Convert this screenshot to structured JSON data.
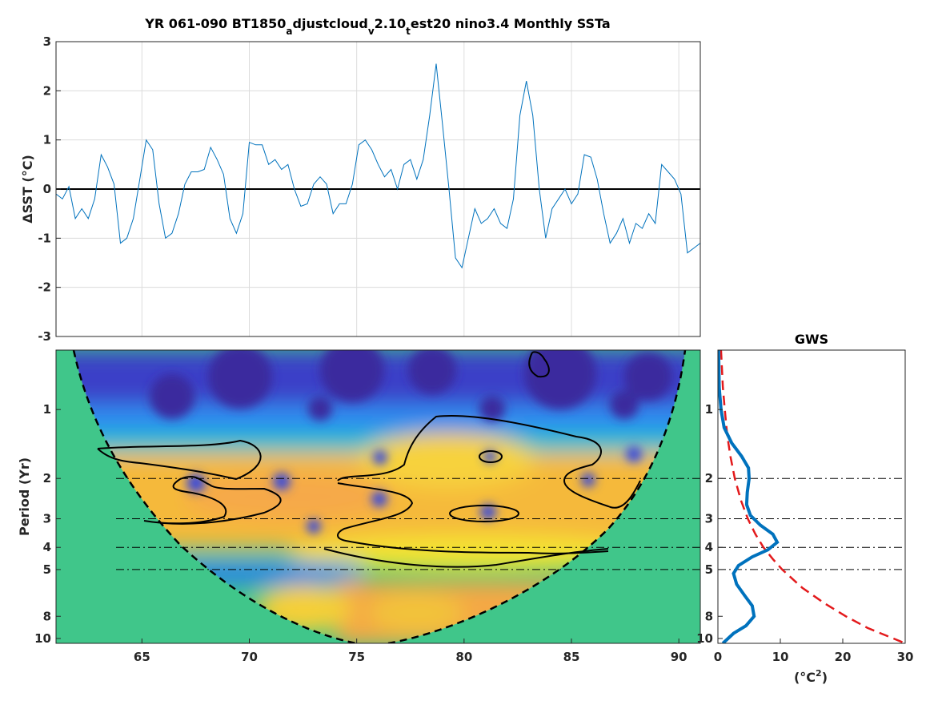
{
  "title": "YR 061-090 BT1850_adjustcloud_v2.10_test20 nino3.4 Monthly SSTa",
  "title_parts": {
    "seg1": "YR 061-090 BT1850",
    "sub1": "a",
    "seg2": "djustcloud",
    "sub2": "v",
    "seg3": "2.10",
    "sub3": "t",
    "seg4": "est20 nino3.4 Monthly SSTa"
  },
  "chart_data": [
    {
      "id": "timeseries",
      "type": "line",
      "ylabel_delta": "Δ",
      "ylabel_text": "SST (°C)",
      "xlim": [
        61,
        91
      ],
      "ylim": [
        -3,
        3
      ],
      "yticks": [
        3,
        2,
        1,
        0,
        -1,
        -2,
        -3
      ],
      "grid": true,
      "zero_line": true,
      "series": [
        {
          "x": [
            61.0,
            61.3,
            61.6,
            61.9,
            62.2,
            62.5,
            62.8,
            63.1,
            63.4,
            63.7,
            64.0,
            64.3,
            64.6,
            64.9,
            65.2,
            65.5,
            65.8,
            66.1,
            66.4,
            66.7,
            67.0,
            67.3,
            67.6,
            67.9,
            68.2,
            68.5,
            68.8,
            69.1,
            69.4,
            69.7,
            70.0,
            70.3,
            70.6,
            70.9,
            71.2,
            71.5,
            71.8,
            72.1,
            72.4,
            72.7,
            73.0,
            73.3,
            73.6,
            73.9,
            74.2,
            74.5,
            74.8,
            75.1,
            75.4,
            75.7,
            76.0,
            76.3,
            76.6,
            76.9,
            77.2,
            77.5,
            77.8,
            78.1,
            78.4,
            78.7,
            79.0,
            79.3,
            79.6,
            79.9,
            80.2,
            80.5,
            80.8,
            81.1,
            81.4,
            81.7,
            82.0,
            82.3,
            82.6,
            82.9,
            83.2,
            83.5,
            83.8,
            84.1,
            84.4,
            84.7,
            85.0,
            85.3,
            85.6,
            85.9,
            86.2,
            86.5,
            86.8,
            87.1,
            87.4,
            87.7,
            88.0,
            88.3,
            88.6,
            88.9,
            89.2,
            89.5,
            89.8,
            90.1,
            90.4,
            90.7,
            91.0
          ],
          "values": [
            -0.1,
            -0.2,
            0.05,
            -0.6,
            -0.4,
            -0.6,
            -0.2,
            0.7,
            0.45,
            0.1,
            -1.1,
            -1.0,
            -0.6,
            0.2,
            1.0,
            0.8,
            -0.3,
            -1.0,
            -0.9,
            -0.5,
            0.1,
            0.35,
            0.35,
            0.4,
            0.85,
            0.6,
            0.3,
            -0.6,
            -0.9,
            -0.5,
            0.95,
            0.9,
            0.9,
            0.5,
            0.6,
            0.4,
            0.5,
            0.0,
            -0.35,
            -0.3,
            0.1,
            0.25,
            0.1,
            -0.5,
            -0.3,
            -0.3,
            0.1,
            0.9,
            1.0,
            0.8,
            0.5,
            0.25,
            0.4,
            0.0,
            0.5,
            0.6,
            0.2,
            0.6,
            1.5,
            2.55,
            1.3,
            0.0,
            -1.4,
            -1.6,
            -1.0,
            -0.4,
            -0.7,
            -0.6,
            -0.4,
            -0.7,
            -0.8,
            -0.2,
            1.5,
            2.2,
            1.5,
            0.0,
            -1.0,
            -0.4,
            -0.2,
            0.0,
            -0.3,
            -0.1,
            0.7,
            0.65,
            0.2,
            -0.5,
            -1.1,
            -0.9,
            -0.6,
            -1.1,
            -0.7,
            -0.8,
            -0.5,
            -0.7,
            0.5,
            0.35,
            0.2,
            -0.1,
            -1.3,
            -1.2,
            -1.1
          ],
          "color": "#0072BD"
        }
      ]
    },
    {
      "id": "wavelet",
      "type": "heatmap",
      "ylabel": "Period (Yr)",
      "xlim": [
        61,
        91
      ],
      "xticks": [
        65,
        70,
        75,
        80,
        85,
        90
      ],
      "ylim": [
        0.55,
        10.5
      ],
      "yscale": "log",
      "yticks": [
        1,
        2,
        3,
        4,
        5,
        8,
        10
      ],
      "reference_periods": [
        2,
        3,
        4,
        5
      ],
      "colormap": "parula",
      "cone_of_influence": true
    },
    {
      "id": "gws",
      "type": "line",
      "title": "GWS",
      "xlabel_base": "(°C",
      "xlabel_sup": "2",
      "xlabel_end": ")",
      "xlim": [
        0,
        30
      ],
      "xticks": [
        0,
        10,
        20,
        30
      ],
      "yscale": "log",
      "ylim": [
        0.55,
        10.5
      ],
      "yticks": [
        1,
        2,
        3,
        4,
        5,
        8,
        10
      ],
      "reference_periods": [
        2,
        3,
        4,
        5
      ],
      "series": [
        {
          "role": "global wavelet spectrum",
          "period": [
            0.55,
            0.8,
            1.0,
            1.2,
            1.4,
            1.6,
            1.8,
            2.0,
            2.3,
            2.6,
            2.9,
            3.2,
            3.5,
            3.8,
            4.1,
            4.4,
            4.8,
            5.2,
            5.8,
            6.5,
            7.2,
            8.0,
            8.8,
            9.5,
            10.5
          ],
          "power": [
            0.1,
            0.2,
            0.5,
            1.0,
            2.2,
            3.8,
            4.9,
            5.0,
            4.7,
            4.6,
            5.2,
            6.8,
            8.8,
            9.5,
            8.0,
            5.5,
            3.3,
            2.5,
            3.0,
            4.3,
            5.5,
            5.8,
            4.5,
            2.5,
            0.8
          ],
          "color": "#0072BD"
        },
        {
          "role": "significance level",
          "period": [
            0.55,
            0.8,
            1.0,
            1.3,
            1.6,
            2.0,
            2.5,
            3.0,
            3.5,
            4.0,
            4.5,
            5.0,
            6.0,
            7.0,
            8.0,
            9.0,
            10.5
          ],
          "power": [
            0.5,
            0.8,
            1.1,
            1.5,
            2.0,
            2.7,
            3.7,
            4.8,
            6.0,
            7.3,
            8.8,
            10.3,
            13.5,
            17.0,
            20.5,
            24.0,
            30.0
          ],
          "color": "#E31A1C"
        }
      ]
    }
  ]
}
